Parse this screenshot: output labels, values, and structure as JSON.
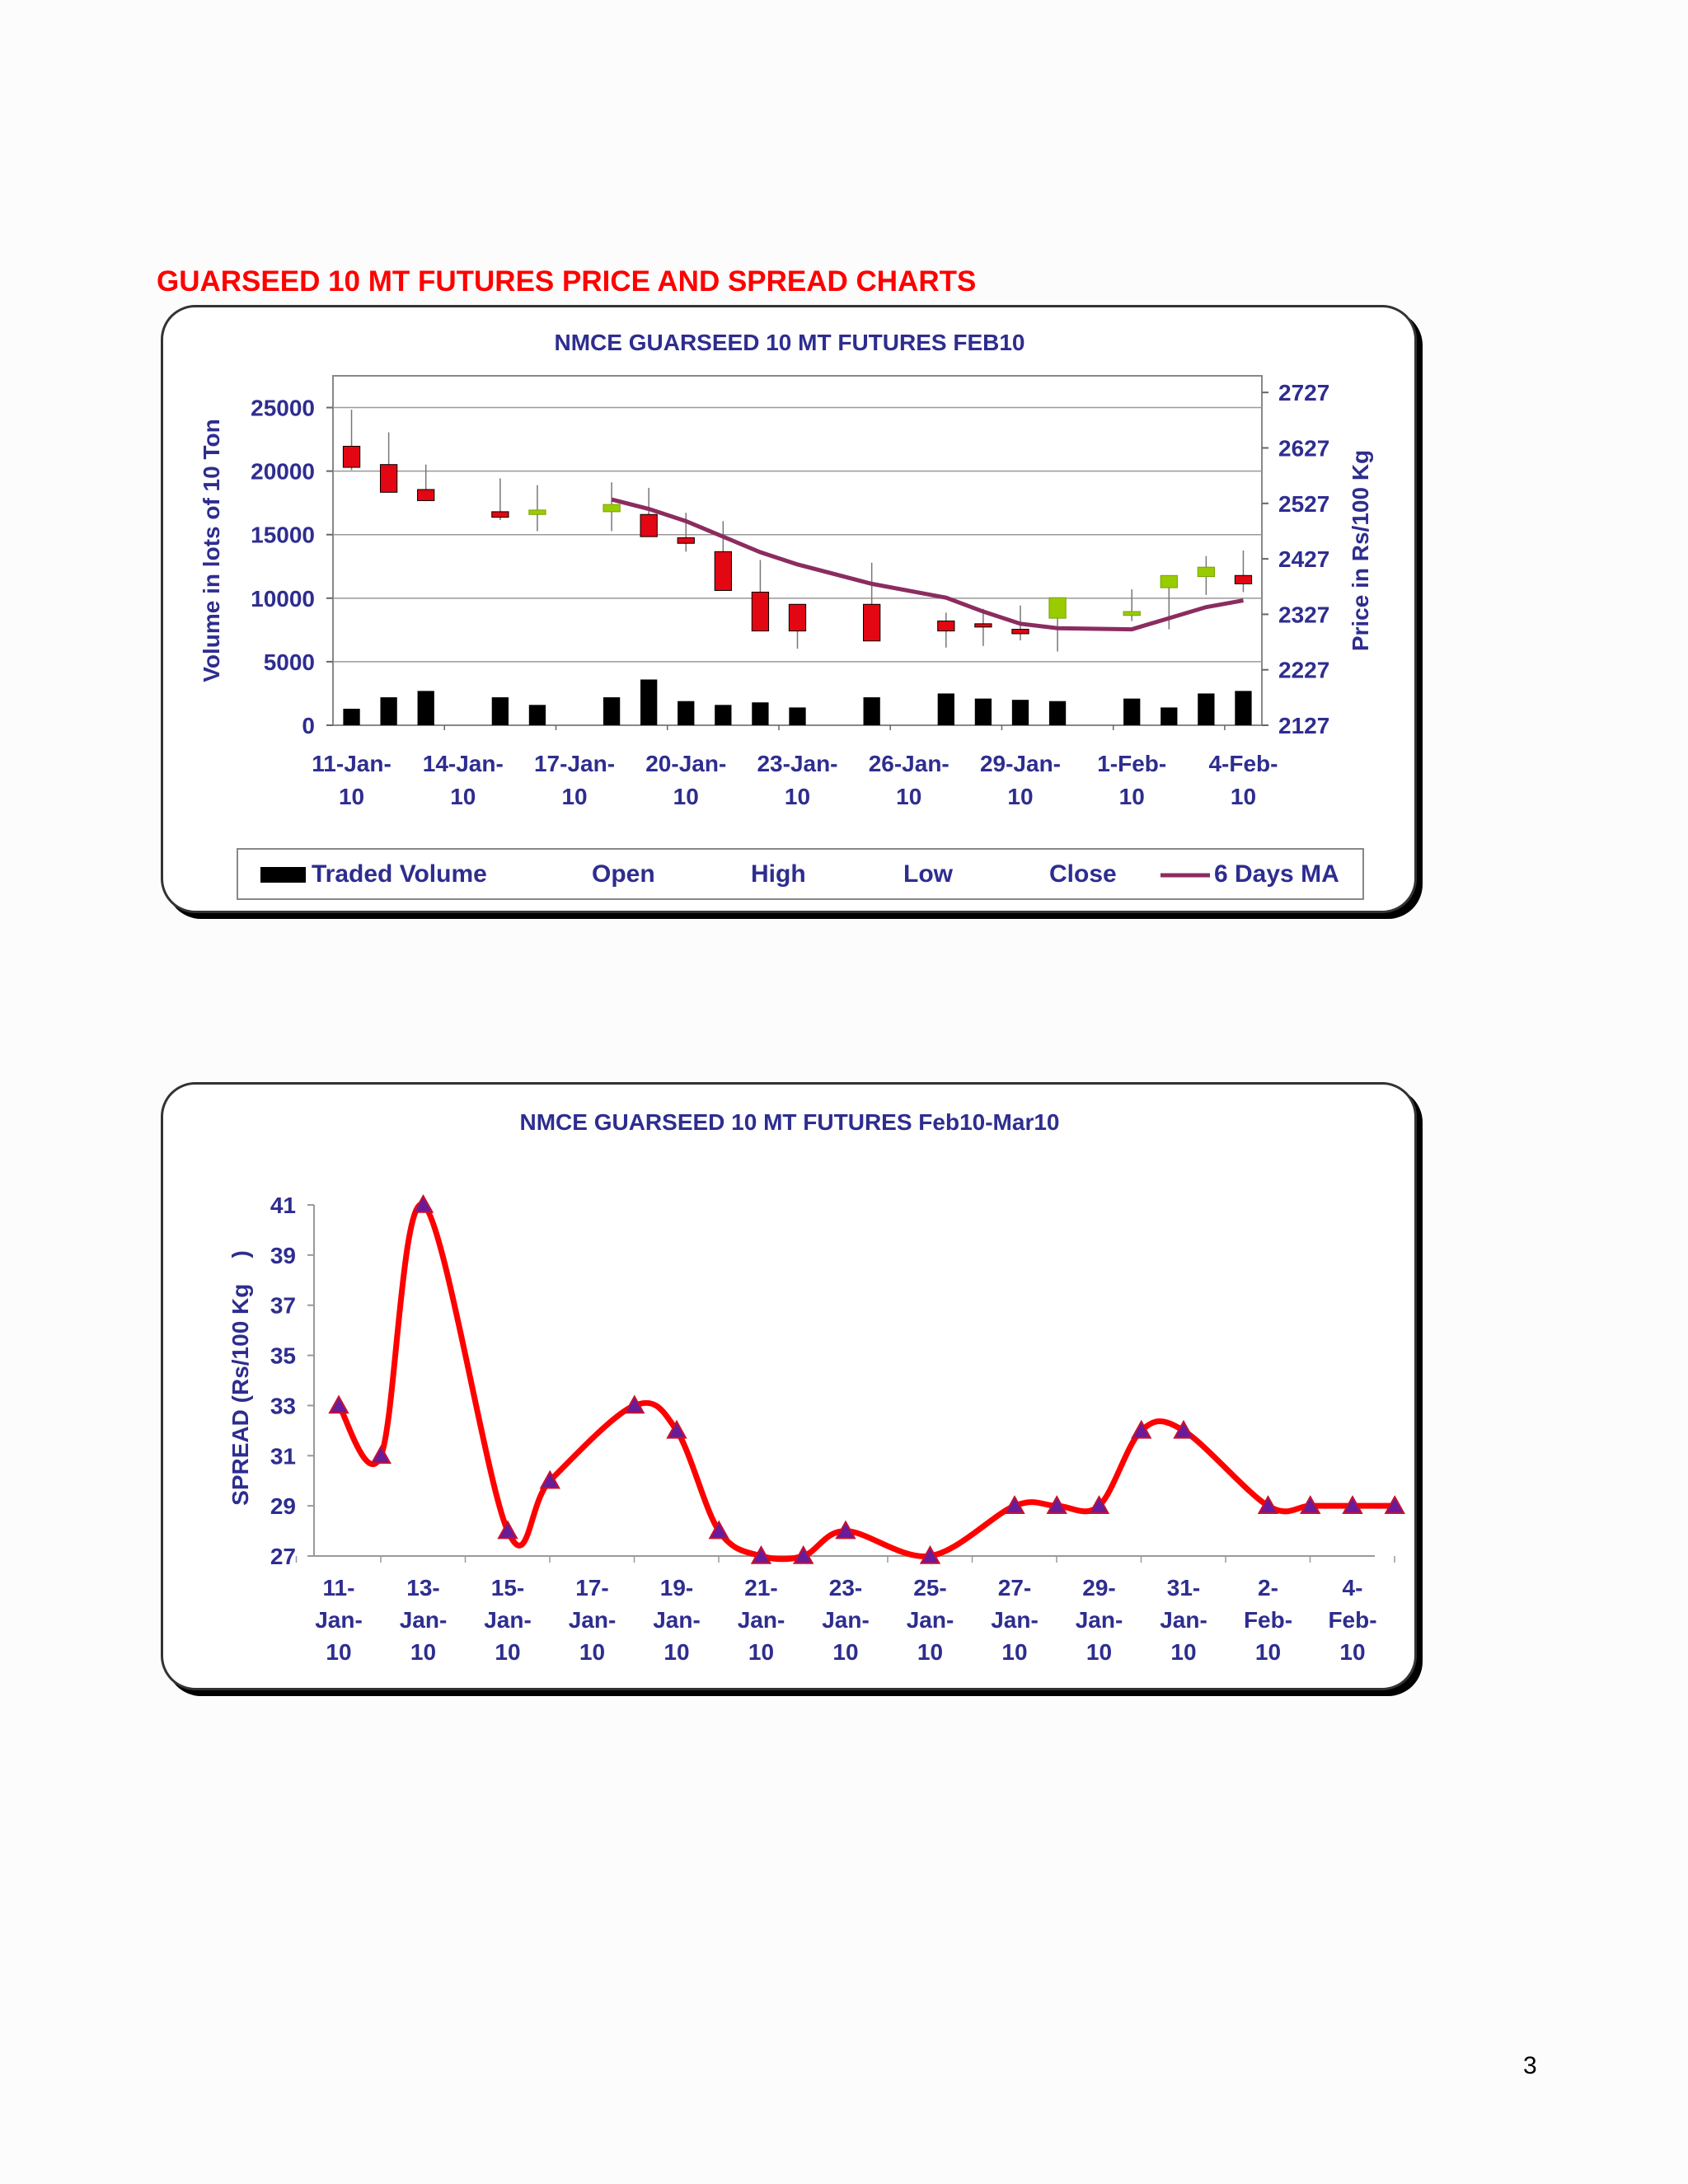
{
  "page": {
    "heading": "GUARSEED 10 MT FUTURES PRICE AND SPREAD CHARTS",
    "page_number": "3"
  },
  "colors": {
    "heading": "#ff0000",
    "axis_text": "#2e2d8f",
    "candle_down": "#e30613",
    "candle_up": "#99cc00",
    "volume": "#000000",
    "ma_line": "#8b2c5f",
    "spread_line": "#ff0000",
    "spread_marker": "#6a1b9a"
  },
  "chart_data": [
    {
      "type": "candlestick",
      "title": "NMCE GUARSEED 10 MT FUTURES FEB10",
      "ylabel_left": "Volume in lots of 10 Ton",
      "ylabel_right": "Price in Rs/100 Kg",
      "ylim_left": [
        0,
        27500
      ],
      "yticks_left": [
        "25000",
        "20000",
        "15000",
        "10000",
        "5000",
        "0"
      ],
      "ylim_right": [
        2127,
        2757
      ],
      "yticks_right": [
        "2727",
        "2627",
        "2527",
        "2427",
        "2327",
        "2227",
        "2127"
      ],
      "x_tick_labels": [
        [
          "11-Jan-",
          "10"
        ],
        [
          "14-Jan-",
          "10"
        ],
        [
          "17-Jan-",
          "10"
        ],
        [
          "20-Jan-",
          "10"
        ],
        [
          "23-Jan-",
          "10"
        ],
        [
          "26-Jan-",
          "10"
        ],
        [
          "29-Jan-",
          "10"
        ],
        [
          "1-Feb-",
          "10"
        ],
        [
          "4-Feb-",
          "10"
        ]
      ],
      "legend": [
        "Traded Volume",
        "Open",
        "High",
        "Low",
        "Close",
        "6 Days MA"
      ],
      "grid": true,
      "days": [
        "11-Jan-10",
        "12-Jan-10",
        "13-Jan-10",
        "15-Jan-10",
        "16-Jan-10",
        "18-Jan-10",
        "19-Jan-10",
        "20-Jan-10",
        "21-Jan-10",
        "22-Jan-10",
        "23-Jan-10",
        "25-Jan-10",
        "27-Jan-10",
        "28-Jan-10",
        "29-Jan-10",
        "30-Jan-10",
        "1-Feb-10",
        "2-Feb-10",
        "3-Feb-10",
        "4-Feb-10"
      ],
      "day_index": [
        0,
        1,
        2,
        4,
        5,
        7,
        8,
        9,
        10,
        11,
        12,
        14,
        16,
        17,
        18,
        19,
        21,
        22,
        23,
        24
      ],
      "open": [
        2630,
        2597,
        2552,
        2512,
        2507,
        2512,
        2507,
        2465,
        2440,
        2367,
        2345,
        2345,
        2315,
        2310,
        2300,
        2320,
        2325,
        2375,
        2395,
        2397
      ],
      "high": [
        2696,
        2655,
        2597,
        2572,
        2560,
        2565,
        2555,
        2510,
        2495,
        2425,
        2344,
        2420,
        2330,
        2337,
        2343,
        2335,
        2372,
        2382,
        2432,
        2442
      ],
      "low": [
        2587,
        2572,
        2542,
        2497,
        2477,
        2477,
        2467,
        2440,
        2405,
        2340,
        2265,
        2285,
        2267,
        2270,
        2280,
        2260,
        2315,
        2300,
        2362,
        2367
      ],
      "close": [
        2592,
        2547,
        2532,
        2502,
        2515,
        2525,
        2467,
        2455,
        2370,
        2297,
        2297,
        2279,
        2297,
        2305,
        2292,
        2357,
        2332,
        2397,
        2412,
        2382
      ],
      "volume": [
        1300,
        2200,
        2700,
        2200,
        1600,
        2200,
        3600,
        1900,
        1600,
        1800,
        1400,
        2200,
        2500,
        2100,
        2000,
        1900,
        2100,
        1400,
        2500,
        2700
      ],
      "ma": [
        null,
        null,
        null,
        null,
        null,
        2534,
        2517,
        2495,
        2467,
        2439,
        2417,
        2382,
        2357,
        2332,
        2310,
        2302,
        2300,
        2320,
        2340,
        2352
      ]
    },
    {
      "type": "line",
      "title": "NMCE GUARSEED 10 MT FUTURES Feb10-Mar10",
      "ylabel": "SPREAD (Rs/100 Kg    )",
      "ylim": [
        27,
        41
      ],
      "yticks": [
        "41",
        "39",
        "37",
        "35",
        "33",
        "31",
        "29",
        "27"
      ],
      "x_tick_labels": [
        [
          "11-",
          "Jan-",
          "10"
        ],
        [
          "13-",
          "Jan-",
          "10"
        ],
        [
          "15-",
          "Jan-",
          "10"
        ],
        [
          "17-",
          "Jan-",
          "10"
        ],
        [
          "19-",
          "Jan-",
          "10"
        ],
        [
          "21-",
          "Jan-",
          "10"
        ],
        [
          "23-",
          "Jan-",
          "10"
        ],
        [
          "25-",
          "Jan-",
          "10"
        ],
        [
          "27-",
          "Jan-",
          "10"
        ],
        [
          "29-",
          "Jan-",
          "10"
        ],
        [
          "31-",
          "Jan-",
          "10"
        ],
        [
          "2-",
          "Feb-",
          "10"
        ],
        [
          "4-",
          "Feb-",
          "10"
        ]
      ],
      "x_index": [
        0,
        1,
        2,
        4,
        5,
        7,
        8,
        9,
        10,
        11,
        12,
        14,
        16,
        17,
        18,
        19,
        20,
        22,
        23,
        24,
        25
      ],
      "values": [
        33,
        31,
        41,
        28,
        30,
        33,
        32,
        28,
        27,
        27,
        28,
        27,
        29,
        29,
        29,
        32,
        32,
        29,
        29,
        29,
        29
      ],
      "series_style": "smoothed red line with triangle markers"
    }
  ]
}
